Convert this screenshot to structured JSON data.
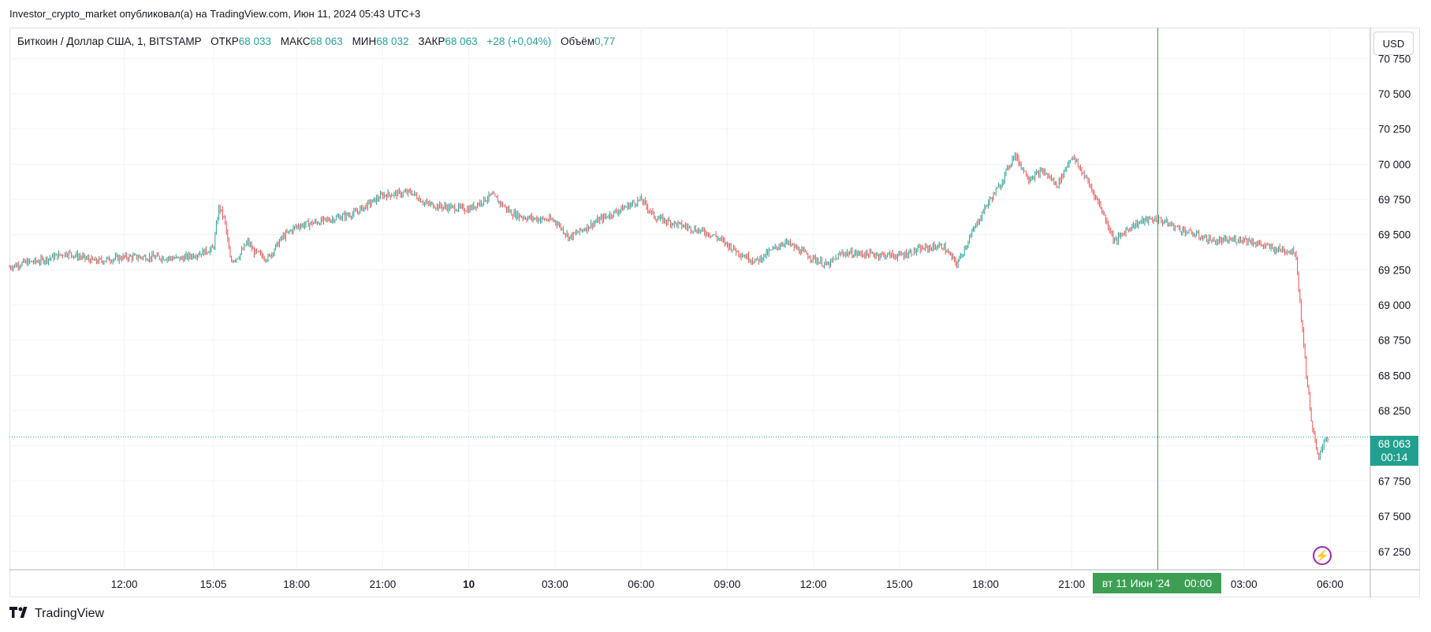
{
  "header": {
    "published_by": "Investor_crypto_market опубликовал(а) на TradingView.com, Июн 11, 2024 05:43 UTC+3"
  },
  "legend": {
    "symbol": "Биткоин / Доллар США, 1, BITSTAMP",
    "open_label": "ОТКР",
    "open": "68 033",
    "high_label": "МАКС",
    "high": "68 063",
    "low_label": "МИН",
    "low": "68 032",
    "close_label": "ЗАКР",
    "close": "68 063",
    "change": "+28 (+0,04%)",
    "volume_label": "Объём",
    "volume": "0,77"
  },
  "currency_button": "USD",
  "price_badge": {
    "price": "68 063",
    "countdown": "00:14"
  },
  "crosshair_time": {
    "date": "вт 11 Июн '24",
    "time": "00:00"
  },
  "brand": "TradingView",
  "colors": {
    "up": "#26a69a",
    "down": "#ef5350",
    "crosshair": "#3d9f54",
    "price_line": "#22a08f",
    "alert": "#9c27b0"
  },
  "icons": {
    "alert": "lightning-icon",
    "logo": "tradingview-logo-icon"
  },
  "chart_data": {
    "type": "line",
    "title": "Биткоин / Доллар США, 1, BITSTAMP",
    "y_ticks": [
      "67 250",
      "67 500",
      "67 750",
      "68 000",
      "68 250",
      "68 500",
      "68 750",
      "69 000",
      "69 250",
      "69 500",
      "69 750",
      "70 000",
      "70 250",
      "70 500",
      "70 750"
    ],
    "y_tick_values": [
      67250,
      67500,
      67750,
      68000,
      68250,
      68500,
      68750,
      69000,
      69250,
      69500,
      69750,
      70000,
      70250,
      70500,
      70750
    ],
    "x_ticks": [
      "12:00",
      "15:05",
      "18:00",
      "21:00",
      "10",
      "03:00",
      "06:00",
      "09:00",
      "12:00",
      "15:00",
      "18:00",
      "21:00",
      "03:00",
      "06:00"
    ],
    "x_tick_hours": [
      12,
      15.1,
      18,
      21,
      24,
      27,
      30,
      33,
      36,
      39,
      42,
      45,
      51,
      54
    ],
    "x_range_hours": [
      8.0,
      55.4
    ],
    "y_range": [
      67120,
      70970
    ],
    "last_price": 68063,
    "crosshair_hour": 48,
    "grid": true,
    "series": [
      {
        "x_hours": [
          8.0,
          8.5,
          9.0,
          10.0,
          11.0,
          12.0,
          13.0,
          14.0,
          14.8,
          15.1,
          15.3,
          15.5,
          15.7,
          16.0,
          16.3,
          16.5,
          17.0,
          17.5,
          18.0,
          19.0,
          20.0,
          21.0,
          22.0,
          22.5,
          23.0,
          24.0,
          24.8,
          25.5,
          26.0,
          27.0,
          27.5,
          28.5,
          29.5,
          30.0,
          30.5,
          31.5,
          32.5,
          33.5,
          34.0,
          35.0,
          36.0,
          36.5,
          37.0,
          38.0,
          39.0,
          39.8,
          40.5,
          41.0,
          41.5,
          42.0,
          42.5,
          43.0,
          43.5,
          44.0,
          44.5,
          45.0,
          45.5,
          46.0,
          46.5,
          47.0,
          47.5,
          48.0,
          49.0,
          50.0,
          51.0,
          52.0,
          52.8,
          53.0,
          53.2,
          53.4,
          53.6,
          53.8,
          54.0
        ],
        "y": [
          69270,
          69300,
          69310,
          69370,
          69310,
          69340,
          69340,
          69330,
          69380,
          69400,
          69700,
          69600,
          69310,
          69350,
          69450,
          69380,
          69330,
          69480,
          69560,
          69600,
          69650,
          69780,
          69800,
          69720,
          69700,
          69680,
          69780,
          69650,
          69620,
          69600,
          69480,
          69600,
          69700,
          69750,
          69620,
          69560,
          69500,
          69360,
          69310,
          69450,
          69330,
          69280,
          69370,
          69360,
          69350,
          69400,
          69420,
          69290,
          69500,
          69700,
          69850,
          70070,
          69900,
          69950,
          69850,
          70060,
          69900,
          69700,
          69450,
          69550,
          69600,
          69610,
          69520,
          69450,
          69470,
          69400,
          69380,
          68900,
          68450,
          68100,
          67900,
          68050,
          68063
        ]
      }
    ]
  }
}
